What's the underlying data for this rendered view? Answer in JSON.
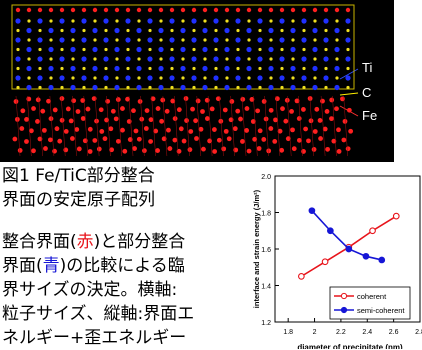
{
  "figure": {
    "labels": [
      "Ti",
      "C",
      "Fe"
    ],
    "caption": [
      "図1 Fe/TiC部分整合",
      "界面の安定原子配列"
    ]
  },
  "paragraph": [
    [
      "整合界面(",
      "赤",
      ")と部分整合"
    ],
    [
      "界面(",
      "青",
      ")の比較による臨"
    ],
    [
      "界サイズの決定。横軸:"
    ],
    [
      "粒子サイズ、縦軸:界面エ"
    ],
    [
      "ネルギー+歪エネルギー"
    ]
  ],
  "chart_data": {
    "type": "line",
    "xlabel": "diameter of precipitate (nm)",
    "ylabel": "interface and strain energy (J/m²)",
    "xlim": [
      1.7,
      2.8
    ],
    "ylim": [
      1.2,
      2.0
    ],
    "xticks": [
      1.8,
      2,
      2.2,
      2.4,
      2.6,
      2.8
    ],
    "yticks": [
      1.2,
      1.4,
      1.6,
      1.8,
      {
        "value": 2,
        "label": "2.0"
      }
    ],
    "legend": "lower right",
    "series": [
      {
        "name": "coherent",
        "color": "#e8141b",
        "marker": "open",
        "x": [
          1.9,
          2.08,
          2.26,
          2.44,
          2.62
        ],
        "values": [
          1.45,
          1.53,
          1.61,
          1.7,
          1.78
        ]
      },
      {
        "name": "semi-coherent",
        "color": "#1616d6",
        "marker": "filled",
        "x": [
          1.98,
          2.12,
          2.26,
          2.39,
          2.51
        ],
        "values": [
          1.81,
          1.7,
          1.6,
          1.56,
          1.54
        ]
      }
    ]
  }
}
